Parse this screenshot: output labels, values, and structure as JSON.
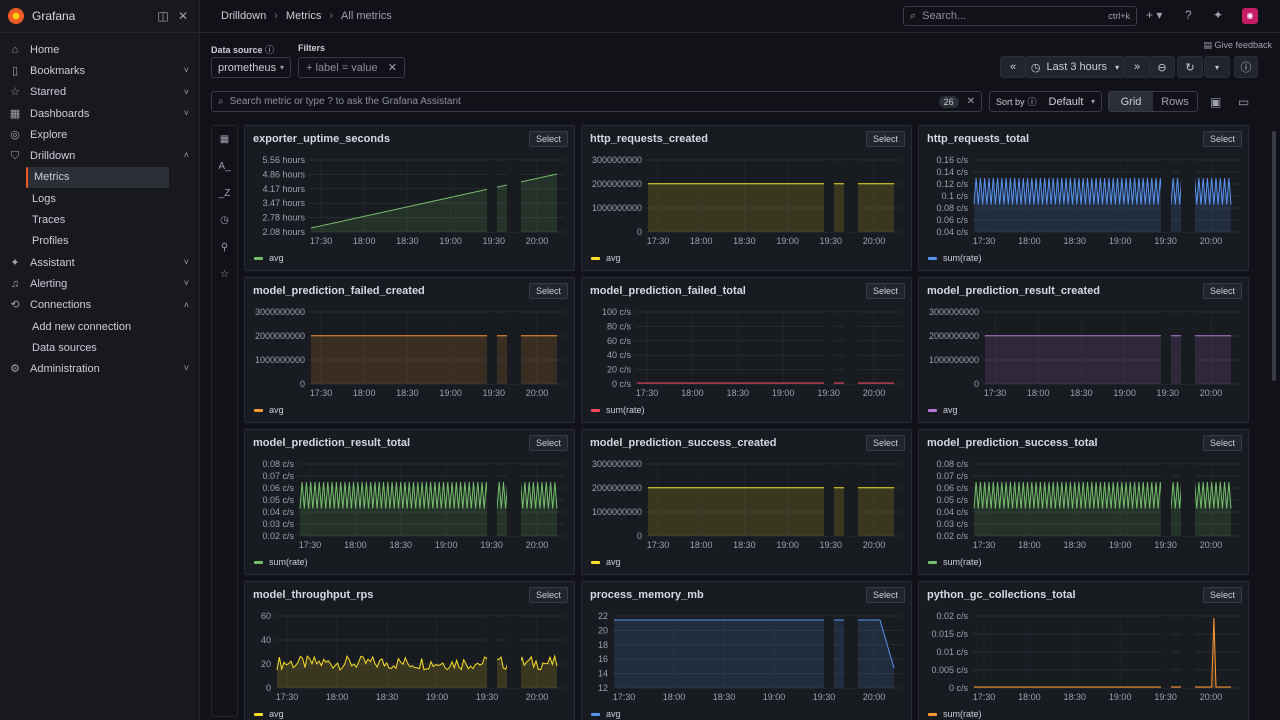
{
  "app": {
    "brand": "Grafana"
  },
  "breadcrumbs": [
    "Drilldown",
    "Metrics",
    "All metrics"
  ],
  "search": {
    "placeholder": "Search...",
    "shortcut": "ctrl+k"
  },
  "nav": [
    {
      "label": "Home",
      "icon": "home-icon",
      "chevron": false
    },
    {
      "label": "Bookmarks",
      "icon": "bookmark-icon",
      "chevron": true
    },
    {
      "label": "Starred",
      "icon": "star-icon",
      "chevron": true
    },
    {
      "label": "Dashboards",
      "icon": "dashboards-icon",
      "chevron": true
    },
    {
      "label": "Explore",
      "icon": "compass-icon",
      "chevron": false
    },
    {
      "label": "Drilldown",
      "icon": "drilldown-icon",
      "chevron": true,
      "open": true,
      "children": [
        "Metrics",
        "Logs",
        "Traces",
        "Profiles"
      ],
      "active": "Metrics"
    },
    {
      "label": "Assistant",
      "icon": "assistant-icon",
      "chevron": true
    },
    {
      "label": "Alerting",
      "icon": "bell-icon",
      "chevron": true
    },
    {
      "label": "Connections",
      "icon": "connections-icon",
      "chevron": true,
      "open": true,
      "children": [
        "Add new connection",
        "Data sources"
      ]
    },
    {
      "label": "Administration",
      "icon": "gear-icon",
      "chevron": true
    }
  ],
  "controls": {
    "feedback": "Give feedback",
    "datasource_label": "Data source",
    "datasource_value": "prometheus",
    "filters_label": "Filters",
    "filters_placeholder": "+ label = value",
    "time_range": "Last 3 hours",
    "metric_search_placeholder": "Search metric or type ? to ask the Grafana Assistant",
    "metric_count": "26",
    "sort_label": "Sort by",
    "sort_value": "Default",
    "view_grid": "Grid",
    "view_rows": "Rows",
    "select_label": "Select"
  },
  "time_ticks": [
    "17:30",
    "18:00",
    "18:30",
    "19:00",
    "19:30",
    "20:00"
  ],
  "panels": [
    {
      "title": "exporter_uptime_seconds",
      "legend": "avg",
      "color": "#73bf69",
      "kind": "ramp",
      "yticks": [
        "5.56 hours",
        "4.86 hours",
        "4.17 hours",
        "3.47 hours",
        "2.78 hours",
        "2.08 hours"
      ]
    },
    {
      "title": "http_requests_created",
      "legend": "avg",
      "color": "#fade2a",
      "kind": "flat",
      "yticks": [
        "3000000000",
        "2000000000",
        "1000000000",
        "0"
      ]
    },
    {
      "title": "http_requests_total",
      "legend": "sum(rate)",
      "color": "#5794f2",
      "kind": "osc",
      "yticks": [
        "0.16 c/s",
        "0.14 c/s",
        "0.12 c/s",
        "0.1 c/s",
        "0.08 c/s",
        "0.06 c/s",
        "0.04 c/s"
      ]
    },
    {
      "title": "model_prediction_failed_created",
      "legend": "avg",
      "color": "#ff9830",
      "kind": "flat",
      "yticks": [
        "3000000000",
        "2000000000",
        "1000000000",
        "0"
      ]
    },
    {
      "title": "model_prediction_failed_total",
      "legend": "sum(rate)",
      "color": "#f2495c",
      "kind": "zero",
      "yticks": [
        "100 c/s",
        "80 c/s",
        "60 c/s",
        "40 c/s",
        "20 c/s",
        "0 c/s"
      ]
    },
    {
      "title": "model_prediction_result_created",
      "legend": "avg",
      "color": "#b877d9",
      "kind": "flat",
      "yticks": [
        "3000000000",
        "2000000000",
        "1000000000",
        "0"
      ]
    },
    {
      "title": "model_prediction_result_total",
      "legend": "sum(rate)",
      "color": "#73bf69",
      "kind": "osc",
      "yticks": [
        "0.08 c/s",
        "0.07 c/s",
        "0.06 c/s",
        "0.05 c/s",
        "0.04 c/s",
        "0.03 c/s",
        "0.02 c/s"
      ]
    },
    {
      "title": "model_prediction_success_created",
      "legend": "avg",
      "color": "#fade2a",
      "kind": "flat",
      "yticks": [
        "3000000000",
        "2000000000",
        "1000000000",
        "0"
      ]
    },
    {
      "title": "model_prediction_success_total",
      "legend": "sum(rate)",
      "color": "#73bf69",
      "kind": "osc",
      "yticks": [
        "0.08 c/s",
        "0.07 c/s",
        "0.06 c/s",
        "0.05 c/s",
        "0.04 c/s",
        "0.03 c/s",
        "0.02 c/s"
      ]
    },
    {
      "title": "model_throughput_rps",
      "legend": "avg",
      "color": "#fade2a",
      "kind": "noise",
      "yticks": [
        "60",
        "40",
        "20",
        "0"
      ]
    },
    {
      "title": "process_memory_mb",
      "legend": "avg",
      "color": "#5794f2",
      "kind": "mem",
      "yticks": [
        "22",
        "20",
        "18",
        "16",
        "14",
        "12"
      ]
    },
    {
      "title": "python_gc_collections_total",
      "legend": "sum(rate)",
      "color": "#ff9830",
      "kind": "spike",
      "yticks": [
        "0.02 c/s",
        "0.015 c/s",
        "0.01 c/s",
        "0.005 c/s",
        "0 c/s"
      ]
    }
  ]
}
